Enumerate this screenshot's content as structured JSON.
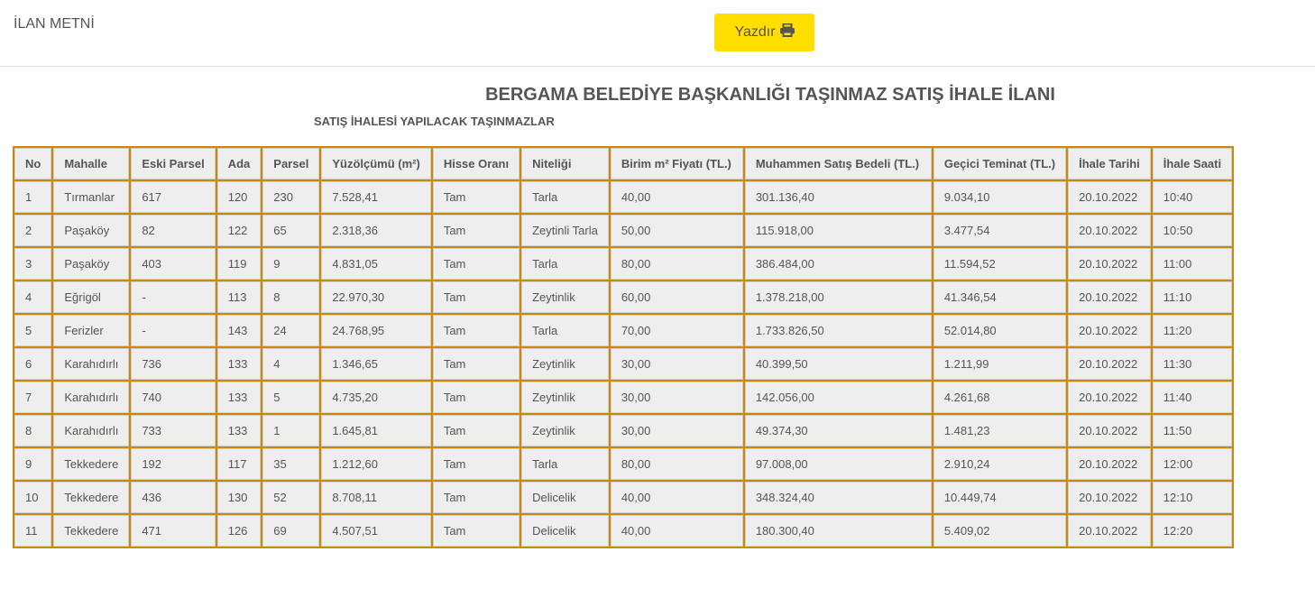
{
  "header": {
    "label": "İLAN METNİ",
    "print_label": "Yazdır",
    "print_icon": "printer-icon",
    "accent": "#ffde00"
  },
  "title": "BERGAMA BELEDİYE BAŞKANLIĞI TAŞINMAZ SATIŞ İHALE İLANI",
  "subtitle": "SATIŞ İHALESİ YAPILACAK TAŞINMAZLAR",
  "table": {
    "columns": [
      "No",
      "Mahalle",
      "Eski Parsel",
      "Ada",
      "Parsel",
      "Yüzölçümü (m²)",
      "Hisse Oranı",
      "Niteliği",
      "Birim m² Fiyatı (TL.)",
      "Muhammen Satış Bedeli (TL.)",
      "Geçici Teminat (TL.)",
      "İhale Tarihi",
      "İhale Saati"
    ],
    "rows": [
      [
        "1",
        "Tırmanlar",
        "617",
        "120",
        "230",
        "7.528,41",
        "Tam",
        "Tarla",
        "40,00",
        "301.136,40",
        "9.034,10",
        "20.10.2022",
        "10:40"
      ],
      [
        "2",
        "Paşaköy",
        "82",
        "122",
        "65",
        "2.318,36",
        "Tam",
        "Zeytinli Tarla",
        "50,00",
        "115.918,00",
        "3.477,54",
        "20.10.2022",
        "10:50"
      ],
      [
        "3",
        "Paşaköy",
        "403",
        "119",
        "9",
        "4.831,05",
        "Tam",
        "Tarla",
        "80,00",
        "386.484,00",
        "11.594,52",
        "20.10.2022",
        "11:00"
      ],
      [
        "4",
        "Eğrigöl",
        "-",
        "113",
        "8",
        "22.970,30",
        "Tam",
        "Zeytinlik",
        "60,00",
        "1.378.218,00",
        "41.346,54",
        "20.10.2022",
        "11:10"
      ],
      [
        "5",
        "Ferizler",
        "-",
        "143",
        "24",
        "24.768,95",
        "Tam",
        "Tarla",
        "70,00",
        "1.733.826,50",
        "52.014,80",
        "20.10.2022",
        "11:20"
      ],
      [
        "6",
        "Karahıdırlı",
        "736",
        "133",
        "4",
        "1.346,65",
        "Tam",
        "Zeytinlik",
        "30,00",
        "40.399,50",
        "1.211,99",
        "20.10.2022",
        "11:30"
      ],
      [
        "7",
        "Karahıdırlı",
        "740",
        "133",
        "5",
        "4.735,20",
        "Tam",
        "Zeytinlik",
        "30,00",
        "142.056,00",
        "4.261,68",
        "20.10.2022",
        "11:40"
      ],
      [
        "8",
        "Karahıdırlı",
        "733",
        "133",
        "1",
        "1.645,81",
        "Tam",
        "Zeytinlik",
        "30,00",
        "49.374,30",
        "1.481,23",
        "20.10.2022",
        "11:50"
      ],
      [
        "9",
        "Tekkedere",
        "192",
        "117",
        "35",
        "1.212,60",
        "Tam",
        "Tarla",
        "80,00",
        "97.008,00",
        "2.910,24",
        "20.10.2022",
        "12:00"
      ],
      [
        "10",
        "Tekkedere",
        "436",
        "130",
        "52",
        "8.708,11",
        "Tam",
        "Delicelik",
        "40,00",
        "348.324,40",
        "10.449,74",
        "20.10.2022",
        "12:10"
      ],
      [
        "11",
        "Tekkedere",
        "471",
        "126",
        "69",
        "4.507,51",
        "Tam",
        "Delicelik",
        "40,00",
        "180.300,40",
        "5.409,02",
        "20.10.2022",
        "12:20"
      ]
    ]
  }
}
